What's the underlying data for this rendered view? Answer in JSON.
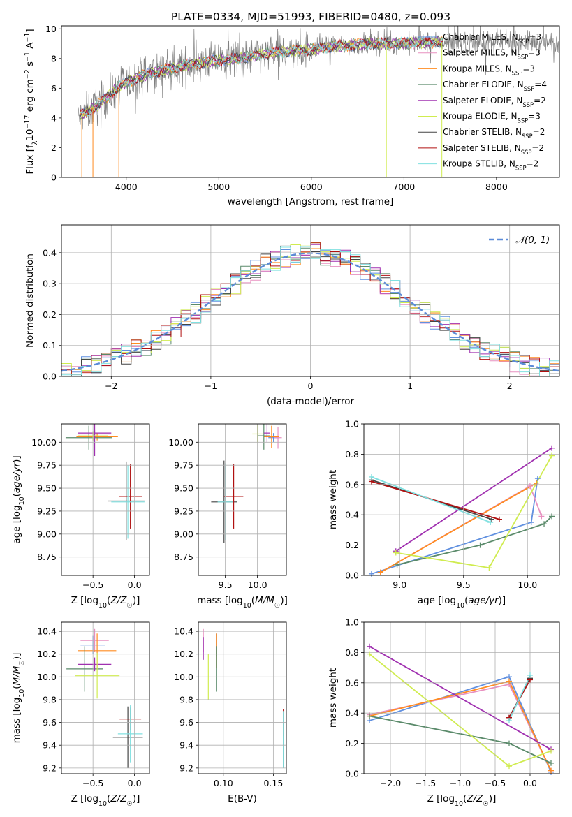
{
  "figure": {
    "title": "PLATE=0334, MJD=51993, FIBERID=0480, z=0.093"
  },
  "chart_data": [
    {
      "id": "spectrum",
      "type": "line",
      "title": "PLATE=0334, MJD=51993, FIBERID=0480, z=0.093",
      "xlabel": "wavelength [Angstrom, rest frame]",
      "ylabel": "Flux [f_λ 10^-17 erg cm^-2 s^-1 A^-1]",
      "xlim": [
        3300,
        8680
      ],
      "ylim": [
        0,
        10.2
      ],
      "xticks": [
        "4000",
        "5000",
        "6000",
        "7000",
        "8000"
      ],
      "yticks": [
        "0",
        "2",
        "4",
        "6",
        "8",
        "10"
      ],
      "grid": false,
      "legend_position": "upper-right",
      "data_color": "#808080",
      "continuum_x": [
        3500,
        3600,
        3700,
        3800,
        3900,
        4000,
        4200,
        4400,
        4600,
        4800,
        5000,
        5200,
        5400,
        5600,
        5800,
        6000,
        6200,
        6400,
        6600,
        6800,
        7000,
        7200,
        7400
      ],
      "continuum_y": [
        4.1,
        4.5,
        4.9,
        5.4,
        6.0,
        6.4,
        6.9,
        7.2,
        7.5,
        7.7,
        7.9,
        8.0,
        8.2,
        8.4,
        8.5,
        8.6,
        8.8,
        8.9,
        9.0,
        9.0,
        9.0,
        9.1,
        9.1
      ],
      "series": [
        {
          "name": "Chabrier MILES, N_SSP=3",
          "color": "#6090e0"
        },
        {
          "name": "Salpeter MILES, N_SSP=3",
          "color": "#e890c0"
        },
        {
          "name": "Kroupa MILES, N_SSP=3",
          "color": "#ff8c20"
        },
        {
          "name": "Chabrier ELODIE, N_SSP=4",
          "color": "#5a8a6a"
        },
        {
          "name": "Salpeter ELODIE, N_SSP=2",
          "color": "#a030b0"
        },
        {
          "name": "Kroupa ELODIE, N_SSP=3",
          "color": "#d0ec50"
        },
        {
          "name": "Chabrier STELIB, N_SSP=2",
          "color": "#444444"
        },
        {
          "name": "Salpeter STELIB, N_SSP=2",
          "color": "#b01010"
        },
        {
          "name": "Kroupa STELIB, N_SSP=2",
          "color": "#80e0e0"
        }
      ]
    },
    {
      "id": "residuals",
      "type": "line",
      "xlabel": "(data-model)/error",
      "ylabel": "Normed distribution",
      "xlim": [
        -2.5,
        2.5
      ],
      "ylim": [
        0,
        0.49
      ],
      "xticks": [
        "−2",
        "−1",
        "0",
        "1",
        "2"
      ],
      "yticks": [
        "0.0",
        "0.1",
        "0.2",
        "0.3",
        "0.4"
      ],
      "grid": true,
      "legend_position": "upper-right",
      "gaussian_label": "𝒩(0, 1)",
      "gaussian_color": "#5b8bd8",
      "bin_width": 0.1
    },
    {
      "id": "age_vs_Z",
      "type": "scatter",
      "xlabel": "Z [log10(Z/Z☉)]",
      "ylabel": "age [log10(age/yr)]",
      "xlim": [
        -0.88,
        0.18
      ],
      "ylim": [
        8.55,
        10.2
      ],
      "xticks": [
        "−0.5",
        "0.0"
      ],
      "yticks": [
        "8.75",
        "9.00",
        "9.25",
        "9.50",
        "9.75",
        "10.00"
      ],
      "grid": true,
      "points": [
        {
          "x": -0.5,
          "y": 10.07,
          "xerr": 0.12,
          "yerr": 0.05,
          "color": "#6090e0"
        },
        {
          "x": -0.48,
          "y": 10.09,
          "xerr": 0.2,
          "yerr": 0.04,
          "color": "#e890c0"
        },
        {
          "x": -0.45,
          "y": 10.06,
          "xerr": 0.25,
          "yerr": 0.04,
          "color": "#ff8c20"
        },
        {
          "x": -0.55,
          "y": 10.05,
          "xerr": 0.28,
          "yerr": 0.13,
          "color": "#5a8a6a"
        },
        {
          "x": -0.48,
          "y": 10.1,
          "xerr": 0.2,
          "yerr": 0.25,
          "color": "#a030b0"
        },
        {
          "x": -0.5,
          "y": 10.07,
          "xerr": 0.18,
          "yerr": 0.05,
          "color": "#d0ec50"
        },
        {
          "x": -0.1,
          "y": 9.36,
          "xerr": 0.22,
          "yerr": 0.43,
          "color": "#444444"
        },
        {
          "x": -0.05,
          "y": 9.41,
          "xerr": 0.14,
          "yerr": 0.35,
          "color": "#b01010"
        },
        {
          "x": -0.08,
          "y": 9.35,
          "xerr": 0.2,
          "yerr": 0.4,
          "color": "#80e0e0"
        }
      ]
    },
    {
      "id": "age_vs_mass",
      "type": "scatter",
      "xlabel": "mass [log10(M/M☉)]",
      "ylabel": "",
      "xlim": [
        9.08,
        10.45
      ],
      "ylim": [
        8.55,
        10.2
      ],
      "xticks": [
        "9.5",
        "10.0"
      ],
      "yticks": [
        "8.75",
        "9.00",
        "9.25",
        "9.50",
        "9.75",
        "10.00"
      ],
      "grid": true,
      "points": [
        {
          "x": 10.25,
          "y": 10.05,
          "xerr": 0.08,
          "yerr": 0.05,
          "color": "#6090e0"
        },
        {
          "x": 10.32,
          "y": 10.05,
          "xerr": 0.06,
          "yerr": 0.12,
          "color": "#e890c0"
        },
        {
          "x": 10.22,
          "y": 10.06,
          "xerr": 0.12,
          "yerr": 0.12,
          "color": "#ff8c20"
        },
        {
          "x": 10.1,
          "y": 10.07,
          "xerr": 0.1,
          "yerr": 0.15,
          "color": "#5a8a6a"
        },
        {
          "x": 10.15,
          "y": 10.1,
          "xerr": 0.05,
          "yerr": 0.1,
          "color": "#a030b0"
        },
        {
          "x": 10.0,
          "y": 10.09,
          "xerr": 0.08,
          "yerr": 0.1,
          "color": "#d0ec50"
        },
        {
          "x": 9.48,
          "y": 9.35,
          "xerr": 0.2,
          "yerr": 0.45,
          "color": "#444444"
        },
        {
          "x": 9.63,
          "y": 9.41,
          "xerr": 0.15,
          "yerr": 0.35,
          "color": "#b01010"
        },
        {
          "x": 9.5,
          "y": 9.35,
          "xerr": 0.12,
          "yerr": 0.42,
          "color": "#80e0e0"
        }
      ]
    },
    {
      "id": "weight_vs_age",
      "type": "line",
      "xlabel": "age [log10(age/yr)]",
      "ylabel": "mass weight",
      "xlim": [
        8.72,
        10.25
      ],
      "ylim": [
        0,
        1.0
      ],
      "xticks": [
        "9.0",
        "9.5",
        "10.0"
      ],
      "yticks": [
        "0.0",
        "0.2",
        "0.4",
        "0.6",
        "0.8",
        "1.0"
      ],
      "grid": true,
      "series": [
        {
          "color": "#6090e0",
          "x": [
            8.78,
            10.03,
            10.08
          ],
          "y": [
            0.01,
            0.35,
            0.64
          ]
        },
        {
          "color": "#e890c0",
          "x": [
            8.85,
            10.02,
            10.11
          ],
          "y": [
            0.02,
            0.59,
            0.39
          ]
        },
        {
          "color": "#ff8c20",
          "x": [
            8.85,
            10.07
          ],
          "y": [
            0.02,
            0.61
          ]
        },
        {
          "color": "#5a8a6a",
          "x": [
            8.98,
            9.63,
            10.13,
            10.19
          ],
          "y": [
            0.07,
            0.2,
            0.34,
            0.39
          ]
        },
        {
          "color": "#a030b0",
          "x": [
            8.97,
            10.19
          ],
          "y": [
            0.16,
            0.84
          ]
        },
        {
          "color": "#d0ec50",
          "x": [
            8.97,
            9.7,
            10.19
          ],
          "y": [
            0.15,
            0.05,
            0.79
          ]
        },
        {
          "color": "#444444",
          "x": [
            8.78,
            9.72
          ],
          "y": [
            0.63,
            0.37
          ]
        },
        {
          "color": "#b01010",
          "x": [
            8.78,
            9.78
          ],
          "y": [
            0.62,
            0.37
          ]
        },
        {
          "color": "#80e0e0",
          "x": [
            8.78,
            9.71
          ],
          "y": [
            0.65,
            0.35
          ]
        }
      ]
    },
    {
      "id": "mass_vs_Z",
      "type": "scatter",
      "xlabel": "Z [log10(Z/Z☉)]",
      "ylabel": "mass [log10(M/M☉)]",
      "xlim": [
        -0.88,
        0.18
      ],
      "ylim": [
        9.15,
        10.48
      ],
      "xticks": [
        "−0.5",
        "0.0"
      ],
      "yticks": [
        "9.2",
        "9.4",
        "9.6",
        "9.8",
        "10.0",
        "10.2",
        "10.4"
      ],
      "grid": true,
      "points": [
        {
          "x": -0.5,
          "y": 10.28,
          "xerr": 0.15,
          "yerr": 0.08,
          "color": "#6090e0"
        },
        {
          "x": -0.48,
          "y": 10.32,
          "xerr": 0.17,
          "yerr": 0.1,
          "color": "#e890c0"
        },
        {
          "x": -0.45,
          "y": 10.23,
          "xerr": 0.23,
          "yerr": 0.15,
          "color": "#ff8c20"
        },
        {
          "x": -0.6,
          "y": 10.07,
          "xerr": 0.22,
          "yerr": 0.2,
          "color": "#5a8a6a"
        },
        {
          "x": -0.48,
          "y": 10.11,
          "xerr": 0.2,
          "yerr": 0.06,
          "color": "#a030b0"
        },
        {
          "x": -0.45,
          "y": 10.01,
          "xerr": 0.27,
          "yerr": 0.2,
          "color": "#d0ec50"
        },
        {
          "x": -0.08,
          "y": 9.47,
          "xerr": 0.18,
          "yerr": 0.27,
          "color": "#444444"
        },
        {
          "x": -0.05,
          "y": 9.63,
          "xerr": 0.13,
          "yerr": 0.1,
          "color": "#b01010"
        },
        {
          "x": -0.05,
          "y": 9.5,
          "xerr": 0.15,
          "yerr": 0.25,
          "color": "#80e0e0"
        }
      ]
    },
    {
      "id": "mass_vs_ebv",
      "type": "scatter",
      "xlabel": "E(B-V)",
      "ylabel": "",
      "xlim": [
        0.075,
        0.163
      ],
      "ylim": [
        9.15,
        10.48
      ],
      "xticks": [
        "0.10",
        "0.15"
      ],
      "yticks": [
        "9.2",
        "9.4",
        "9.6",
        "9.8",
        "10.0",
        "10.2",
        "10.4"
      ],
      "grid": true,
      "points": [
        {
          "x": 0.093,
          "y": 10.28,
          "xerr": 0.0,
          "yerr": 0.1,
          "color": "#6090e0"
        },
        {
          "x": 0.08,
          "y": 10.32,
          "xerr": 0.0,
          "yerr": 0.1,
          "color": "#e890c0"
        },
        {
          "x": 0.093,
          "y": 10.23,
          "xerr": 0.0,
          "yerr": 0.15,
          "color": "#ff8c20"
        },
        {
          "x": 0.093,
          "y": 10.07,
          "xerr": 0.0,
          "yerr": 0.2,
          "color": "#5a8a6a"
        },
        {
          "x": 0.08,
          "y": 10.25,
          "xerr": 0.0,
          "yerr": 0.1,
          "color": "#a030b0"
        },
        {
          "x": 0.085,
          "y": 10.0,
          "xerr": 0.0,
          "yerr": 0.2,
          "color": "#d0ec50"
        },
        {
          "x": 0.16,
          "y": 9.4,
          "xerr": 0.0,
          "yerr": 0.2,
          "color": "#444444"
        },
        {
          "x": 0.16,
          "y": 9.6,
          "xerr": 0.0,
          "yerr": 0.12,
          "color": "#b01010"
        },
        {
          "x": 0.16,
          "y": 9.45,
          "xerr": 0.0,
          "yerr": 0.25,
          "color": "#80e0e0"
        }
      ]
    },
    {
      "id": "weight_vs_Z",
      "type": "line",
      "xlabel": "Z [log10(Z/Z☉)]",
      "ylabel": "mass weight",
      "xlim": [
        -2.38,
        0.42
      ],
      "ylim": [
        0,
        1.0
      ],
      "xticks": [
        "−2.0",
        "−1.5",
        "−1.0",
        "−0.5",
        "0.0"
      ],
      "yticks": [
        "0.0",
        "0.2",
        "0.4",
        "0.6",
        "0.8",
        "1.0"
      ],
      "grid": true,
      "series": [
        {
          "color": "#6090e0",
          "x": [
            -2.3,
            -0.3,
            0.3
          ],
          "y": [
            0.35,
            0.64,
            0.01
          ]
        },
        {
          "color": "#e890c0",
          "x": [
            -2.3,
            -0.3,
            0.3
          ],
          "y": [
            0.39,
            0.59,
            0.02
          ]
        },
        {
          "color": "#ff8c20",
          "x": [
            -2.3,
            -0.3,
            0.3
          ],
          "y": [
            0.38,
            0.61,
            0.02
          ]
        },
        {
          "color": "#5a8a6a",
          "x": [
            -2.3,
            -0.3,
            0.3
          ],
          "y": [
            0.38,
            0.2,
            0.07
          ]
        },
        {
          "color": "#a030b0",
          "x": [
            -2.3,
            0.3
          ],
          "y": [
            0.84,
            0.16
          ]
        },
        {
          "color": "#d0ec50",
          "x": [
            -2.3,
            -0.3,
            0.3
          ],
          "y": [
            0.79,
            0.05,
            0.15
          ]
        },
        {
          "color": "#444444",
          "x": [
            -0.3,
            0.0
          ],
          "y": [
            0.37,
            0.63
          ]
        },
        {
          "color": "#b01010",
          "x": [
            -0.3,
            0.0
          ],
          "y": [
            0.37,
            0.62
          ]
        },
        {
          "color": "#80e0e0",
          "x": [
            -0.3,
            0.0
          ],
          "y": [
            0.35,
            0.65
          ]
        }
      ]
    }
  ]
}
